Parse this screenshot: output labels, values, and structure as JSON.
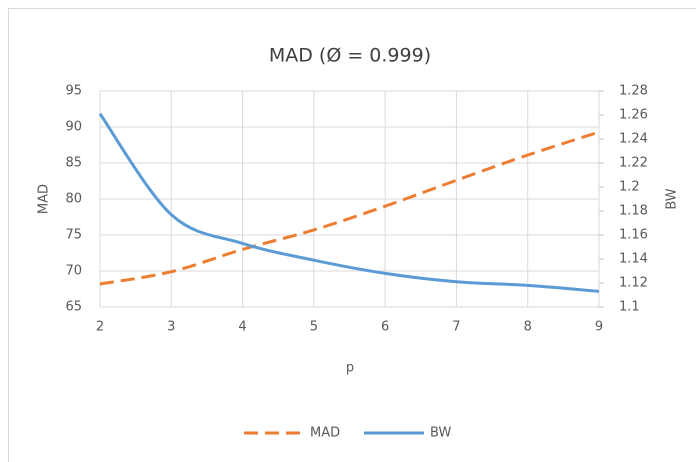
{
  "chart_data": {
    "type": "line",
    "title": "MAD (Ø = 0.999)",
    "x_label": "p",
    "y_label": "MAD",
    "y2_label": "BW",
    "x": [
      2,
      3,
      4,
      5,
      6,
      7,
      8,
      9
    ],
    "xlim": [
      2,
      9
    ],
    "xticks": [
      2,
      3,
      4,
      5,
      6,
      7,
      8,
      9
    ],
    "ylim": [
      65,
      95
    ],
    "yticks": [
      65,
      70,
      75,
      80,
      85,
      90,
      95
    ],
    "y2lim": [
      1.1,
      1.28
    ],
    "y2ticks": [
      1.1,
      1.12,
      1.14,
      1.16,
      1.18,
      1.2,
      1.22,
      1.24,
      1.26,
      1.28
    ],
    "grid": true,
    "legend": "bottom",
    "series": [
      {
        "name": "MAD",
        "color": "#ed7d31",
        "dashed": true,
        "values": [
          68.2,
          69.9,
          73,
          75.7,
          79,
          82.6,
          86.1,
          89.3
        ]
      },
      {
        "name": "BW",
        "color": "#5b9bd5",
        "dashed": false,
        "axis": "y2",
        "values": [
          1.261,
          1.177,
          1.153,
          1.139,
          1.128,
          1.121,
          1.118,
          1.113
        ]
      }
    ]
  }
}
